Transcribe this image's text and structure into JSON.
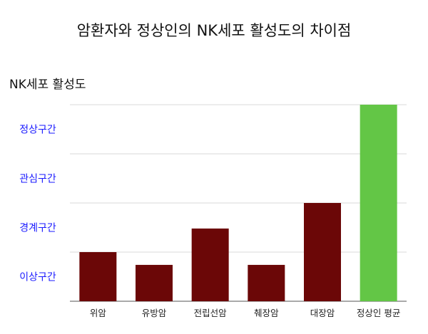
{
  "chart_data": {
    "type": "bar",
    "title": "암환자와 정상인의 NK세포 활성도의 차이점",
    "ylabel": "NK세포 활성도",
    "xlabel": "",
    "y_bands": [
      "이상구간",
      "경계구간",
      "관심구간",
      "정상구간"
    ],
    "ylim": [
      0,
      4
    ],
    "grid": true,
    "categories": [
      "위암",
      "유방암",
      "전립선암",
      "췌장암",
      "대장암",
      "정상인 평균"
    ],
    "values": [
      1.0,
      0.74,
      1.48,
      0.74,
      2.0,
      4.0
    ],
    "colors": [
      "#6b0707",
      "#6b0707",
      "#6b0707",
      "#6b0707",
      "#6b0707",
      "#63c646"
    ],
    "band_label_color": "#1a1aff"
  }
}
